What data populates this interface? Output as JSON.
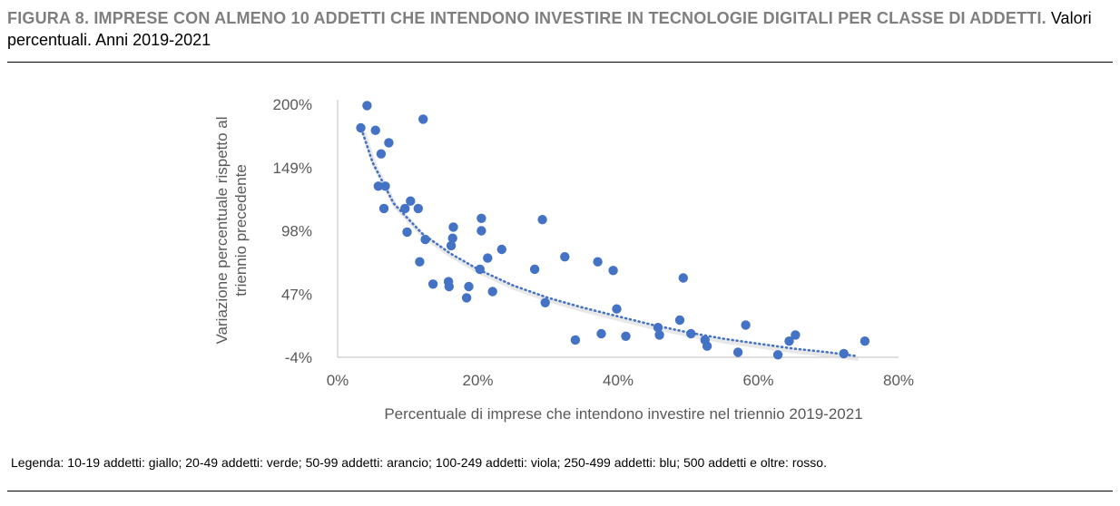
{
  "title": {
    "bold": "FIGURA 8. IMPRESE CON ALMENO 10 ADDETTI CHE INTENDONO INVESTIRE IN TECNOLOGIE DIGITALI PER CLASSE DI ADDETTI.",
    "rest": "Valori percentuali. Anni 2019-2021"
  },
  "legend_note": "Legenda: 10-19 addetti: giallo; 20-49 addetti: verde; 50-99 addetti: arancio; 100-249 addetti: viola; 250-499 addetti: blu; 500 addetti e oltre: rosso.",
  "colors": {
    "points": "#4472c4",
    "trend": "#4472c4",
    "axis": "#bfbfbf",
    "tick_text": "#595959"
  },
  "chart_data": {
    "type": "scatter",
    "xlabel": "Percentuale di imprese che intendono investire nel triennio 2019-2021",
    "ylabel_lines": [
      "Variazione percentuale rispetto al",
      "triennio precedente"
    ],
    "x_ticks": [
      "0%",
      "20%",
      "40%",
      "60%",
      "80%"
    ],
    "y_ticks": [
      "200%",
      "149%",
      "98%",
      "47%",
      "-4%"
    ],
    "xlim": [
      0,
      80
    ],
    "ylim": [
      -4,
      200
    ],
    "grid": false,
    "trendline": "dotted power fit",
    "trend": [
      [
        3.4,
        180
      ],
      [
        5,
        153
      ],
      [
        8,
        120
      ],
      [
        12,
        96
      ],
      [
        16,
        80
      ],
      [
        20,
        67
      ],
      [
        25,
        54
      ],
      [
        30,
        44
      ],
      [
        35,
        36
      ],
      [
        40,
        29
      ],
      [
        45,
        22
      ],
      [
        50,
        16
      ],
      [
        55,
        11
      ],
      [
        60,
        7
      ],
      [
        65,
        3
      ],
      [
        70,
        0
      ],
      [
        74,
        -3
      ]
    ],
    "points": [
      [
        3.3,
        181
      ],
      [
        4.2,
        199
      ],
      [
        5.4,
        179
      ],
      [
        6.2,
        160
      ],
      [
        5.8,
        134
      ],
      [
        6.8,
        134
      ],
      [
        7.3,
        169
      ],
      [
        6.6,
        116
      ],
      [
        9.6,
        116
      ],
      [
        10.4,
        122
      ],
      [
        11.5,
        116
      ],
      [
        12.2,
        188
      ],
      [
        9.9,
        97
      ],
      [
        12.5,
        91
      ],
      [
        11.7,
        73
      ],
      [
        13.6,
        55
      ],
      [
        15.8,
        57
      ],
      [
        16.2,
        86
      ],
      [
        16.4,
        92
      ],
      [
        16.5,
        101
      ],
      [
        15.9,
        53
      ],
      [
        18.7,
        53
      ],
      [
        18.4,
        44
      ],
      [
        20.3,
        67
      ],
      [
        20.5,
        98
      ],
      [
        20.5,
        108
      ],
      [
        21.4,
        76
      ],
      [
        22.1,
        49
      ],
      [
        23.4,
        83
      ],
      [
        28.1,
        67
      ],
      [
        29.2,
        107
      ],
      [
        29.6,
        40
      ],
      [
        32.4,
        77
      ],
      [
        33.9,
        10
      ],
      [
        37.1,
        73
      ],
      [
        37.6,
        15
      ],
      [
        39.3,
        66
      ],
      [
        39.8,
        35
      ],
      [
        41.1,
        13
      ],
      [
        45.7,
        20
      ],
      [
        45.9,
        14
      ],
      [
        48.8,
        26
      ],
      [
        49.3,
        60
      ],
      [
        50.4,
        15
      ],
      [
        52.4,
        10
      ],
      [
        52.7,
        5
      ],
      [
        57.1,
        0
      ],
      [
        58.2,
        22
      ],
      [
        62.8,
        -2
      ],
      [
        64.4,
        9
      ],
      [
        65.3,
        14
      ],
      [
        72.2,
        -1
      ],
      [
        75.2,
        9
      ]
    ]
  }
}
